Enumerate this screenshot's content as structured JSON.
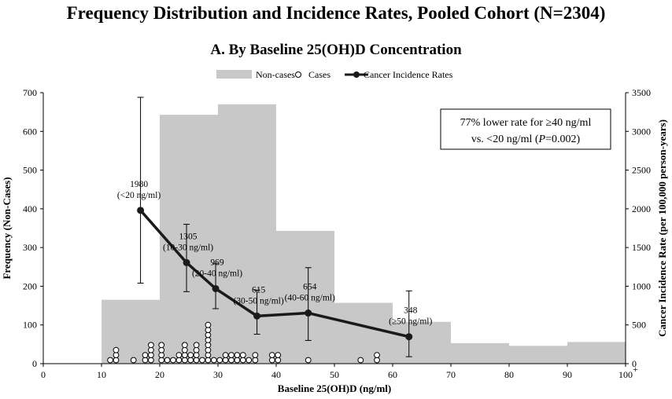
{
  "title": "Frequency Distribution and Incidence Rates, Pooled Cohort (N=2304)",
  "subtitle": "A. By Baseline 25(OH)D Concentration",
  "chart_data": {
    "type": "bar",
    "xlabel": "Baseline 25(OH)D (ng/ml)",
    "ylabel_left": "Frequency (Non-Cases)",
    "ylabel_right": "Cancer Incidence Rate (per 100,000 person-years)",
    "xlim": [
      0,
      100
    ],
    "ylim_left": [
      0,
      700
    ],
    "ylim_right": [
      0,
      3500
    ],
    "x_ticks": [
      "0",
      "10",
      "20",
      "30",
      "40",
      "50",
      "60",
      "70",
      "80",
      "90",
      "100"
    ],
    "x_last_tick_suffix": "+",
    "y_left_ticks": [
      "0",
      "100",
      "200",
      "300",
      "400",
      "500",
      "600",
      "700"
    ],
    "y_right_ticks": [
      "0",
      "500",
      "1000",
      "1500",
      "2000",
      "2500",
      "3000",
      "3500"
    ],
    "legend": {
      "placement": "top-center",
      "noncases": "Non-cases",
      "cases": "Cases",
      "rates": "Cancer Incidence Rates"
    },
    "colors": {
      "bars": "#c8c8c8",
      "line": "#1a1a1a"
    },
    "noncase_bars": [
      {
        "x0": 10,
        "x1": 20,
        "value": 165
      },
      {
        "x0": 20,
        "x1": 30,
        "value": 643
      },
      {
        "x0": 30,
        "x1": 40,
        "value": 670
      },
      {
        "x0": 40,
        "x1": 50,
        "value": 343
      },
      {
        "x0": 50,
        "x1": 60,
        "value": 157
      },
      {
        "x0": 60,
        "x1": 70,
        "value": 108
      },
      {
        "x0": 70,
        "x1": 80,
        "value": 53
      },
      {
        "x0": 80,
        "x1": 90,
        "value": 46
      },
      {
        "x0": 90,
        "x1": 100,
        "value": 56
      }
    ],
    "rate_series": [
      {
        "x": 16.7,
        "y": 1980,
        "ci": [
          1040,
          3440
        ],
        "value_label": "1980",
        "range_label": "(<20 ng/ml)"
      },
      {
        "x": 24.6,
        "y": 1305,
        "ci": [
          930,
          1800
        ],
        "value_label": "1305",
        "range_label": "(10-30 ng/ml)"
      },
      {
        "x": 29.6,
        "y": 969,
        "ci": [
          710,
          1290
        ],
        "value_label": "969",
        "range_label": "(20-40 ng/ml)"
      },
      {
        "x": 36.7,
        "y": 615,
        "ci": [
          380,
          950
        ],
        "value_label": "615",
        "range_label": "(30-50 ng/ml)"
      },
      {
        "x": 45.5,
        "y": 654,
        "ci": [
          300,
          1240
        ],
        "value_label": "654",
        "range_label": "(40-60 ng/ml)"
      },
      {
        "x": 62.8,
        "y": 348,
        "ci": [
          90,
          940
        ],
        "value_label": "348",
        "range_label": "(≥50 ng/ml)"
      }
    ],
    "cases": [
      {
        "x": 11.5,
        "count": 1
      },
      {
        "x": 12.5,
        "count": 3
      },
      {
        "x": 15.5,
        "count": 1
      },
      {
        "x": 17.5,
        "count": 2
      },
      {
        "x": 18.5,
        "count": 4
      },
      {
        "x": 20.3,
        "count": 4
      },
      {
        "x": 21.3,
        "count": 1
      },
      {
        "x": 22.3,
        "count": 1
      },
      {
        "x": 23.3,
        "count": 2
      },
      {
        "x": 24.3,
        "count": 4
      },
      {
        "x": 25.3,
        "count": 2
      },
      {
        "x": 26.3,
        "count": 4
      },
      {
        "x": 27.3,
        "count": 1
      },
      {
        "x": 28.3,
        "count": 8
      },
      {
        "x": 29.3,
        "count": 1
      },
      {
        "x": 30.3,
        "count": 1
      },
      {
        "x": 31.3,
        "count": 2
      },
      {
        "x": 32.3,
        "count": 2
      },
      {
        "x": 33.3,
        "count": 2
      },
      {
        "x": 34.3,
        "count": 2
      },
      {
        "x": 35.3,
        "count": 1
      },
      {
        "x": 36.4,
        "count": 2
      },
      {
        "x": 39.3,
        "count": 2
      },
      {
        "x": 40.3,
        "count": 2
      },
      {
        "x": 45.5,
        "count": 1
      },
      {
        "x": 54.5,
        "count": 1
      },
      {
        "x": 57.3,
        "count": 2
      }
    ],
    "annotation": {
      "line1": "77% lower rate for ≥40 ng/ml",
      "line2_prefix": "vs. <20 ng/ml (",
      "line2_italic": "P",
      "line2_suffix": "=0.002)"
    }
  }
}
